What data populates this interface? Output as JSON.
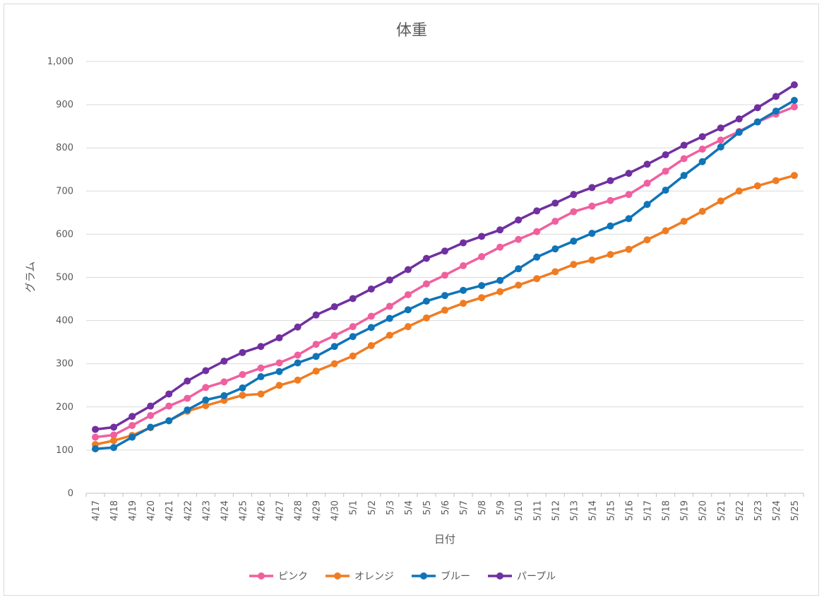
{
  "chart_data": {
    "type": "line",
    "title": "体重",
    "xlabel": "日付",
    "ylabel": "グラム",
    "ylim": [
      0,
      1000
    ],
    "yticks": [
      "0",
      "100",
      "200",
      "300",
      "400",
      "500",
      "600",
      "700",
      "800",
      "900",
      "1,000"
    ],
    "grid": true,
    "legend_position": "bottom",
    "categories": [
      "4/17",
      "4/18",
      "4/19",
      "4/20",
      "4/21",
      "4/22",
      "4/23",
      "4/24",
      "4/25",
      "4/26",
      "4/27",
      "4/28",
      "4/29",
      "4/30",
      "5/1",
      "5/2",
      "5/3",
      "5/4",
      "5/5",
      "5/6",
      "5/7",
      "5/8",
      "5/9",
      "5/10",
      "5/11",
      "5/12",
      "5/13",
      "5/14",
      "5/15",
      "5/16",
      "5/17",
      "5/18",
      "5/19",
      "5/20",
      "5/21",
      "5/22",
      "5/23",
      "5/24",
      "5/25"
    ],
    "series": [
      {
        "name": "ピンク",
        "color": "#f0609e",
        "values": [
          130,
          135,
          157,
          180,
          202,
          220,
          245,
          258,
          275,
          290,
          302,
          320,
          345,
          365,
          386,
          410,
          433,
          460,
          485,
          505,
          527,
          548,
          570,
          588,
          606,
          630,
          652,
          665,
          678,
          692,
          718,
          746,
          775,
          797,
          818,
          838,
          860,
          878,
          895
        ]
      },
      {
        "name": "オレンジ",
        "color": "#f07c22",
        "values": [
          113,
          122,
          134,
          152,
          168,
          190,
          203,
          215,
          227,
          230,
          250,
          262,
          283,
          300,
          318,
          342,
          366,
          386,
          406,
          424,
          440,
          453,
          467,
          482,
          497,
          513,
          530,
          540,
          553,
          565,
          587,
          608,
          630,
          653,
          677,
          700,
          712,
          724,
          736
        ]
      },
      {
        "name": "ブルー",
        "color": "#0f74b8",
        "values": [
          103,
          106,
          130,
          153,
          168,
          193,
          216,
          226,
          244,
          270,
          282,
          302,
          317,
          340,
          363,
          384,
          405,
          425,
          445,
          458,
          470,
          481,
          493,
          520,
          547,
          566,
          584,
          602,
          619,
          636,
          669,
          702,
          736,
          768,
          802,
          836,
          860,
          885,
          910
        ]
      },
      {
        "name": "パープル",
        "color": "#7030a0",
        "values": [
          148,
          153,
          178,
          202,
          230,
          260,
          284,
          306,
          326,
          340,
          360,
          385,
          413,
          432,
          451,
          473,
          494,
          518,
          544,
          561,
          580,
          595,
          610,
          633,
          654,
          672,
          692,
          708,
          724,
          741,
          762,
          784,
          806,
          826,
          846,
          867,
          893,
          919,
          946
        ]
      }
    ]
  }
}
